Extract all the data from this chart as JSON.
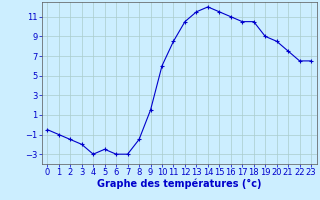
{
  "hours": [
    0,
    1,
    2,
    3,
    4,
    5,
    6,
    7,
    8,
    9,
    10,
    11,
    12,
    13,
    14,
    15,
    16,
    17,
    18,
    19,
    20,
    21,
    22,
    23
  ],
  "temps": [
    -0.5,
    -1.0,
    -1.5,
    -2.0,
    -3.0,
    -2.5,
    -3.0,
    -3.0,
    -1.5,
    1.5,
    6.0,
    8.5,
    10.5,
    11.5,
    12.0,
    11.5,
    11.0,
    10.5,
    10.5,
    9.0,
    8.5,
    7.5,
    6.5,
    6.5
  ],
  "line_color": "#0000cc",
  "marker": "+",
  "bg_color": "#cceeff",
  "grid_color": "#aacccc",
  "xlabel": "Graphe des températures (°c)",
  "xlabel_color": "#0000cc",
  "xlabel_fontsize": 7,
  "tick_color": "#0000cc",
  "tick_fontsize": 6,
  "ylim": [
    -4,
    12.5
  ],
  "yticks": [
    -3,
    -1,
    1,
    3,
    5,
    7,
    9,
    11
  ],
  "xlim": [
    -0.5,
    23.5
  ],
  "xticks": [
    0,
    1,
    2,
    3,
    4,
    5,
    6,
    7,
    8,
    9,
    10,
    11,
    12,
    13,
    14,
    15,
    16,
    17,
    18,
    19,
    20,
    21,
    22,
    23
  ]
}
